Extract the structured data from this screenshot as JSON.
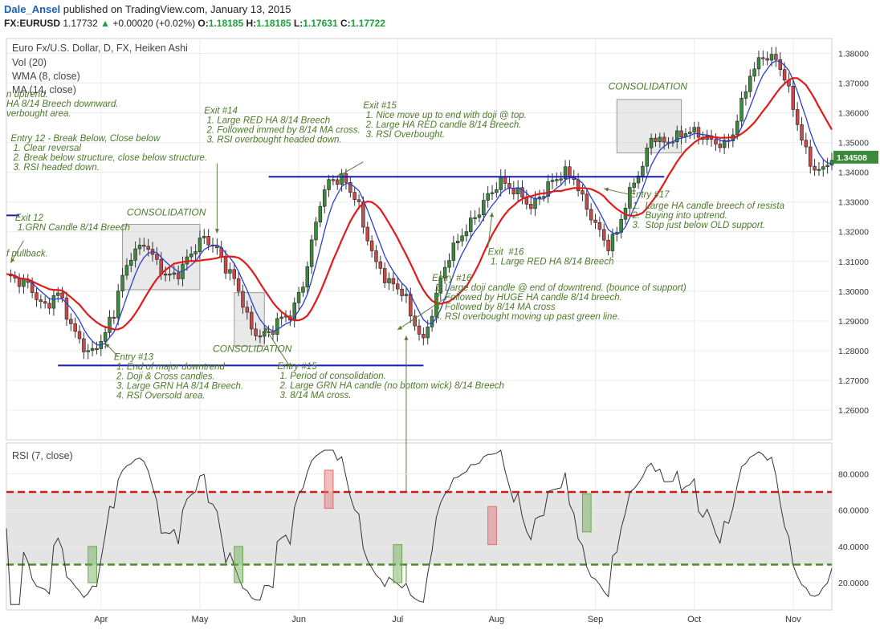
{
  "header": {
    "author": "Dale_Ansel",
    "published": "published on TradingView.com, January 13, 2015",
    "symbol": "FX:EURUSD",
    "last": "1.17732",
    "change": "+0.00020 (+0.02%)",
    "o_label": "O:",
    "o": "1.18185",
    "h_label": "H:",
    "h": "1.18185",
    "l_label": "L:",
    "l": "1.17631",
    "c_label": "C:",
    "c": "1.17722"
  },
  "legend": {
    "title": "Euro Fx/U.S. Dollar, D, FX, Heiken Ashi",
    "vol": "Vol (20)",
    "wma": "WMA (8, close)",
    "ma": "MA (14, close)",
    "rsi": "RSI (7, close)"
  },
  "colors": {
    "bull": "#3c8a3c",
    "bear": "#c84a4a",
    "wma": "#2a3fd6",
    "ma": "#e01b1b",
    "annotation": "#4d7a2a",
    "support": "#1a1ab8",
    "rsi_upper": "#c81e1e",
    "rsi_lower": "#4e8a2e"
  },
  "chart_data": [
    {
      "type": "candlestick",
      "title": "Euro Fx/U.S. Dollar, D, FX, Heiken Ashi",
      "ylim": [
        1.25,
        1.385
      ],
      "y_ticks": [
        "1.38000",
        "1.37000",
        "1.36000",
        "1.35000",
        "1.34000",
        "1.33000",
        "1.32000",
        "1.31000",
        "1.30000",
        "1.29000",
        "1.28000",
        "1.27000",
        "1.26000"
      ],
      "y_tick_values": [
        1.38,
        1.37,
        1.36,
        1.35,
        1.34,
        1.33,
        1.32,
        1.31,
        1.3,
        1.29,
        1.28,
        1.27,
        1.26
      ],
      "x_ticks": [
        "Apr",
        "May",
        "Jun",
        "Jul",
        "Aug",
        "Sep",
        "Oct",
        "Nov"
      ],
      "x_tick_days": [
        22,
        45,
        68,
        91,
        114,
        137,
        160,
        183
      ],
      "last_price_label": "1.34508",
      "last_price": 1.34508,
      "day_range": [
        0,
        192
      ],
      "anchors": [
        [
          0,
          1.305
        ],
        [
          4,
          1.303
        ],
        [
          9,
          1.295
        ],
        [
          12,
          1.299
        ],
        [
          16,
          1.286
        ],
        [
          19,
          1.279
        ],
        [
          22,
          1.283
        ],
        [
          25,
          1.293
        ],
        [
          27,
          1.305
        ],
        [
          29,
          1.312
        ],
        [
          32,
          1.316
        ],
        [
          35,
          1.31
        ],
        [
          37,
          1.305
        ],
        [
          40,
          1.306
        ],
        [
          43,
          1.313
        ],
        [
          46,
          1.318
        ],
        [
          49,
          1.314
        ],
        [
          51,
          1.308
        ],
        [
          53,
          1.304
        ],
        [
          55,
          1.296
        ],
        [
          57,
          1.287
        ],
        [
          59,
          1.285
        ],
        [
          61,
          1.286
        ],
        [
          64,
          1.291
        ],
        [
          66,
          1.292
        ],
        [
          69,
          1.302
        ],
        [
          71,
          1.316
        ],
        [
          73,
          1.33
        ],
        [
          75,
          1.337
        ],
        [
          78,
          1.338
        ],
        [
          81,
          1.332
        ],
        [
          84,
          1.318
        ],
        [
          86,
          1.309
        ],
        [
          89,
          1.303
        ],
        [
          92,
          1.3
        ],
        [
          95,
          1.289
        ],
        [
          97,
          1.283
        ],
        [
          99,
          1.293
        ],
        [
          101,
          1.304
        ],
        [
          103,
          1.312
        ],
        [
          105,
          1.317
        ],
        [
          107,
          1.321
        ],
        [
          109,
          1.325
        ],
        [
          112,
          1.332
        ],
        [
          115,
          1.337
        ],
        [
          118,
          1.334
        ],
        [
          120,
          1.332
        ],
        [
          122,
          1.328
        ],
        [
          124,
          1.332
        ],
        [
          127,
          1.337
        ],
        [
          130,
          1.34
        ],
        [
          132,
          1.338
        ],
        [
          134,
          1.331
        ],
        [
          136,
          1.325
        ],
        [
          138,
          1.32
        ],
        [
          140,
          1.315
        ],
        [
          142,
          1.32
        ],
        [
          144,
          1.329
        ],
        [
          146,
          1.337
        ],
        [
          148,
          1.342
        ],
        [
          150,
          1.352
        ],
        [
          153,
          1.35
        ],
        [
          156,
          1.352
        ],
        [
          159,
          1.354
        ],
        [
          162,
          1.352
        ],
        [
          165,
          1.35
        ],
        [
          167,
          1.349
        ],
        [
          169,
          1.353
        ],
        [
          171,
          1.363
        ],
        [
          173,
          1.373
        ],
        [
          176,
          1.379
        ],
        [
          179,
          1.378
        ],
        [
          181,
          1.372
        ],
        [
          183,
          1.362
        ],
        [
          185,
          1.351
        ],
        [
          187,
          1.343
        ],
        [
          189,
          1.34
        ],
        [
          191,
          1.343
        ],
        [
          192,
          1.345
        ]
      ],
      "series": [
        {
          "key": "wma",
          "legend": "WMA (8, close)",
          "period": 8
        },
        {
          "key": "ma",
          "legend": "MA (14, close)",
          "period": 14
        }
      ],
      "support_lines": [
        {
          "d1": 12,
          "d2": 97,
          "y": 1.275
        },
        {
          "d1": 61,
          "d2": 153,
          "y": 1.3385
        },
        {
          "d1": 0,
          "d2": 3,
          "y": 1.3255
        }
      ],
      "consolidation_boxes": [
        {
          "d1": 27,
          "d2": 45,
          "y1": 1.3225,
          "y2": 1.3005,
          "color": "gray"
        },
        {
          "d1": 53,
          "d2": 60,
          "y1": 1.2995,
          "y2": 1.2815,
          "color": "gray"
        },
        {
          "d1": 142,
          "d2": 157,
          "y1": 1.3645,
          "y2": 1.3465,
          "color": "gray"
        }
      ]
    },
    {
      "type": "line",
      "title": "RSI (7, close)",
      "ylim": [
        5,
        97
      ],
      "y_ticks": [
        "80.0000",
        "60.0000",
        "40.0000",
        "20.0000"
      ],
      "y_tick_values": [
        80,
        60,
        40,
        20
      ],
      "levels": [
        70,
        30
      ],
      "rsi_boxes": [
        {
          "d1": 19,
          "d2": 21,
          "y1": 40,
          "y2": 20,
          "color": "green"
        },
        {
          "d1": 53,
          "d2": 55,
          "y1": 40,
          "y2": 20,
          "color": "green"
        },
        {
          "d1": 74,
          "d2": 76,
          "y1": 82,
          "y2": 61,
          "color": "red"
        },
        {
          "d1": 90,
          "d2": 92,
          "y1": 41,
          "y2": 20,
          "color": "green"
        },
        {
          "d1": 112,
          "d2": 114,
          "y1": 62,
          "y2": 41,
          "color": "red"
        },
        {
          "d1": 134,
          "d2": 136,
          "y1": 69,
          "y2": 48,
          "color": "green"
        }
      ]
    }
  ],
  "annotations": [
    {
      "lines": [
        "n uptrend.",
        "HA 8/14 Breech downward.",
        "verbought area."
      ],
      "d": 0,
      "y": 1.3653,
      "color": "green"
    },
    {
      "lines": [
        "Entry 12 - Break Below, Close below",
        " 1. Clear reversal",
        " 2. Break below structure, close below structure.",
        " 3. RSI headed down."
      ],
      "d": 1,
      "y": 1.3505,
      "color": "green"
    },
    {
      "lines": [
        "Exit 12",
        " 1.GRN Candle 8/14 Breech"
      ],
      "d": 2,
      "y": 1.3237,
      "color": "green"
    },
    {
      "lines": [
        "f pullback."
      ],
      "d": 0,
      "y": 1.3117,
      "color": "green"
    },
    {
      "lines": [
        "CONSOLIDATION"
      ],
      "d": 28,
      "y": 1.3255,
      "color": "green",
      "size": 12
    },
    {
      "lines": [
        "Exit #14",
        " 1. Large RED HA 8/14 Breech",
        " 2. Followed immed by 8/14 MA cross.",
        " 3. RSI overbought headed down."
      ],
      "d": 46,
      "y": 1.3598,
      "color": "green"
    },
    {
      "lines": [
        "Exit #15",
        "",
        " 1. Nice move up to end with doji @ top.",
        " 2. Large HA RED candle 8/14 Breech.",
        " 3. RSI Overbought."
      ],
      "d": 83,
      "y": 1.3615,
      "color": "green"
    },
    {
      "lines": [
        "CONSOLIDATION"
      ],
      "d": 140,
      "y": 1.3678,
      "color": "green",
      "size": 12
    },
    {
      "lines": [
        "Entry #17"
      ],
      "d": 145,
      "y": 1.3315,
      "color": "green"
    },
    {
      "lines": [
        " 1.  Large HA candle breech of resista",
        " 2.  Buying into uptrend.",
        " 3.  Stop just below OLD support."
      ],
      "d": 145,
      "y": 1.3277,
      "color": "green"
    },
    {
      "lines": [
        "Exit  #16",
        " 1. Large RED HA 8/14 Breech"
      ],
      "d": 112,
      "y": 1.3123,
      "color": "green"
    },
    {
      "lines": [
        "Entry #16",
        "",
        " 1. Large doji candle @ end of downtrend. (bounce of support)",
        " 2. Followed by HUGE HA candle 8/14 breech.",
        " 3. Followed by 8/14 MA cross",
        " 4. RSI overbought moving up past green line."
      ],
      "d": 99,
      "y": 1.3035,
      "color": "green"
    },
    {
      "lines": [
        "CONSOLIDATION"
      ],
      "d": 48,
      "y": 1.2795,
      "color": "green",
      "size": 12
    },
    {
      "lines": [
        "Entry #13",
        "",
        " 1. End of major downtrend",
        " 2. Doji & Cross candles.",
        " 3. Large GRN HA 8/14 Breech.",
        " 4. RSI Oversold area."
      ],
      "d": 25,
      "y": 1.2768,
      "color": "green"
    },
    {
      "lines": [
        "Entry #15",
        "",
        " 1. Period of consolidation.",
        " 2. Large GRN HA candle (no bottom wick) 8/14 Breech",
        " 3. 8/14 MA cross."
      ],
      "d": 63,
      "y": 1.2737,
      "color": "green"
    }
  ],
  "arrows": [
    {
      "d1": 49,
      "y1": 1.343,
      "d2": 49,
      "y2": 1.3195
    },
    {
      "d1": 83,
      "y1": 1.3435,
      "d2": 77,
      "y2": 1.3385
    },
    {
      "d1": 93,
      "y1": 1.2015,
      "d2": 93,
      "y2": 1.285
    },
    {
      "d1": 103,
      "y1": 1.2985,
      "d2": 91,
      "y2": 1.287
    },
    {
      "d1": 26,
      "y1": 1.278,
      "d2": 23,
      "y2": 1.2825
    },
    {
      "d1": 66,
      "y1": 1.2745,
      "d2": 60,
      "y2": 1.288
    },
    {
      "d1": 112,
      "y1": 1.3145,
      "d2": 113,
      "y2": 1.3265
    },
    {
      "d1": 145,
      "y1": 1.3325,
      "d2": 139,
      "y2": 1.3345
    },
    {
      "d1": 4,
      "y1": 1.317,
      "d2": 1,
      "y2": 1.3095
    }
  ]
}
